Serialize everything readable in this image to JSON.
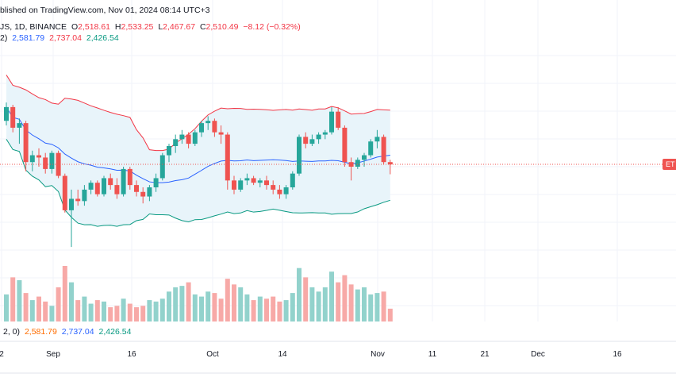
{
  "header": {
    "published": "blished on TradingView.com, Nov 01, 2024 08:14 UTC+3",
    "symbol": "JS, 1D, BINANCE",
    "o_label": "O",
    "o_value": "2,518.61",
    "h_label": "H",
    "h_value": "2,533.25",
    "l_label": "L",
    "l_value": "2,467.67",
    "c_label": "C",
    "c_value": "2,510.49",
    "change": "−8.12 (−0.32%)"
  },
  "bb_legend": {
    "params": "2)",
    "basis": "2,581.79",
    "upper": "2,737.04",
    "lower": "2,426.54"
  },
  "vol_legend": {
    "params": "2, 0)",
    "basis": "2,581.79",
    "upper": "2,737.04",
    "lower": "2,426.54"
  },
  "price_tag": "ET",
  "colors": {
    "up": "#26a69a",
    "down": "#ef5350",
    "basis": "#2962ff",
    "upper": "#f23645",
    "lower": "#089981",
    "band_fill": "#e8f4fa"
  },
  "chart_data": {
    "type": "candlestick",
    "symbol": "ETHUSD",
    "interval": "1D",
    "x_ticks": [
      "2",
      "Sep",
      "16",
      "Oct",
      "14",
      "Nov",
      "11",
      "21",
      "Dec",
      "16"
    ],
    "last_close": 2510.49,
    "candles": [
      [
        2700,
        2780,
        2680,
        2760
      ],
      [
        2760,
        2770,
        2650,
        2670
      ],
      [
        2670,
        2710,
        2600,
        2690
      ],
      [
        2690,
        2700,
        2480,
        2520
      ],
      [
        2520,
        2570,
        2480,
        2550
      ],
      [
        2550,
        2580,
        2500,
        2540
      ],
      [
        2540,
        2560,
        2470,
        2490
      ],
      [
        2490,
        2570,
        2470,
        2560
      ],
      [
        2560,
        2570,
        2450,
        2460
      ],
      [
        2460,
        2470,
        2300,
        2310
      ],
      [
        2310,
        2400,
        2150,
        2360
      ],
      [
        2360,
        2400,
        2330,
        2350
      ],
      [
        2350,
        2420,
        2330,
        2400
      ],
      [
        2400,
        2440,
        2380,
        2430
      ],
      [
        2430,
        2440,
        2370,
        2380
      ],
      [
        2380,
        2460,
        2370,
        2450
      ],
      [
        2450,
        2470,
        2400,
        2420
      ],
      [
        2420,
        2450,
        2360,
        2380
      ],
      [
        2380,
        2500,
        2370,
        2490
      ],
      [
        2490,
        2500,
        2400,
        2420
      ],
      [
        2420,
        2440,
        2370,
        2390
      ],
      [
        2390,
        2410,
        2340,
        2370
      ],
      [
        2370,
        2420,
        2350,
        2410
      ],
      [
        2410,
        2470,
        2390,
        2450
      ],
      [
        2450,
        2560,
        2440,
        2550
      ],
      [
        2550,
        2600,
        2520,
        2590
      ],
      [
        2590,
        2640,
        2560,
        2620
      ],
      [
        2620,
        2660,
        2600,
        2640
      ],
      [
        2640,
        2650,
        2580,
        2600
      ],
      [
        2600,
        2660,
        2590,
        2650
      ],
      [
        2650,
        2700,
        2630,
        2690
      ],
      [
        2690,
        2720,
        2660,
        2700
      ],
      [
        2700,
        2710,
        2630,
        2650
      ],
      [
        2650,
        2680,
        2600,
        2640
      ],
      [
        2640,
        2650,
        2400,
        2440
      ],
      [
        2440,
        2460,
        2380,
        2400
      ],
      [
        2400,
        2450,
        2390,
        2440
      ],
      [
        2440,
        2470,
        2420,
        2450
      ],
      [
        2450,
        2460,
        2420,
        2430
      ],
      [
        2430,
        2450,
        2410,
        2440
      ],
      [
        2440,
        2460,
        2400,
        2420
      ],
      [
        2420,
        2440,
        2380,
        2400
      ],
      [
        2400,
        2420,
        2360,
        2380
      ],
      [
        2380,
        2420,
        2360,
        2410
      ],
      [
        2410,
        2480,
        2400,
        2470
      ],
      [
        2470,
        2640,
        2460,
        2630
      ],
      [
        2630,
        2650,
        2580,
        2600
      ],
      [
        2600,
        2640,
        2590,
        2620
      ],
      [
        2620,
        2650,
        2600,
        2640
      ],
      [
        2640,
        2660,
        2620,
        2650
      ],
      [
        2650,
        2760,
        2640,
        2740
      ],
      [
        2740,
        2760,
        2660,
        2670
      ],
      [
        2670,
        2680,
        2500,
        2520
      ],
      [
        2520,
        2540,
        2440,
        2500
      ],
      [
        2500,
        2540,
        2490,
        2530
      ],
      [
        2530,
        2560,
        2500,
        2550
      ],
      [
        2550,
        2620,
        2540,
        2610
      ],
      [
        2610,
        2660,
        2580,
        2630
      ],
      [
        2630,
        2640,
        2510,
        2520
      ],
      [
        2520,
        2530,
        2467,
        2510
      ]
    ],
    "volume": [
      38,
      62,
      58,
      40,
      30,
      35,
      28,
      22,
      48,
      78,
      55,
      30,
      35,
      25,
      30,
      28,
      20,
      22,
      32,
      25,
      20,
      22,
      30,
      28,
      32,
      42,
      48,
      50,
      55,
      38,
      35,
      42,
      40,
      32,
      60,
      52,
      48,
      38,
      30,
      35,
      32,
      35,
      28,
      30,
      40,
      75,
      62,
      48,
      42,
      48,
      70,
      55,
      65,
      52,
      45,
      48,
      38,
      40,
      42,
      18
    ]
  }
}
